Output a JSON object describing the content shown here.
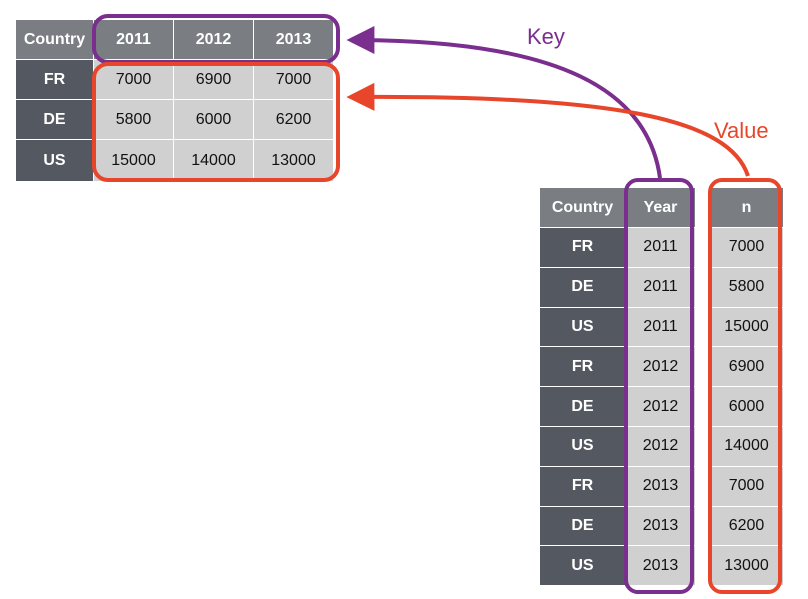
{
  "wide_table": {
    "header": [
      "Country",
      "2011",
      "2012",
      "2013"
    ],
    "rows": [
      [
        "FR",
        "7000",
        "6900",
        "7000"
      ],
      [
        "DE",
        "5800",
        "6000",
        "6200"
      ],
      [
        "US",
        "15000",
        "14000",
        "13000"
      ]
    ]
  },
  "long_table": {
    "header": [
      "Country",
      "Year",
      "",
      "n"
    ],
    "rows": [
      [
        "FR",
        "2011",
        "",
        "7000"
      ],
      [
        "DE",
        "2011",
        "",
        "5800"
      ],
      [
        "US",
        "2011",
        "",
        "15000"
      ],
      [
        "FR",
        "2012",
        "",
        "6900"
      ],
      [
        "DE",
        "2012",
        "",
        "6000"
      ],
      [
        "US",
        "2012",
        "",
        "14000"
      ],
      [
        "FR",
        "2013",
        "",
        "7000"
      ],
      [
        "DE",
        "2013",
        "",
        "6200"
      ],
      [
        "US",
        "2013",
        "",
        "13000"
      ]
    ]
  },
  "labels": {
    "key": "Key",
    "value": "Value"
  },
  "colors": {
    "key": "#7a2e8e",
    "value": "#e8462a",
    "header": "#7a7d82",
    "row_header": "#545860",
    "cell": "#d0d0d0"
  }
}
